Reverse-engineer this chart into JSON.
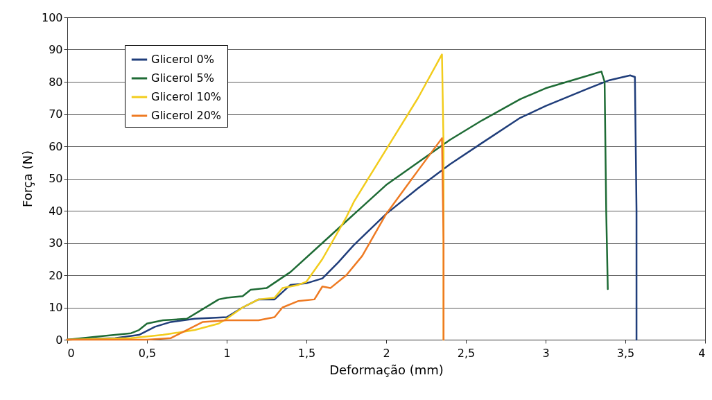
{
  "chart_data": {
    "type": "line",
    "xlabel": "Deformação (mm)",
    "ylabel": "Força (N)",
    "xlim": [
      0,
      4
    ],
    "ylim": [
      0,
      100
    ],
    "xticks": [
      0,
      {
        "value": 0.5,
        "label": "0,5"
      },
      1,
      {
        "value": 1.5,
        "label": "1,5"
      },
      2,
      {
        "value": 2.5,
        "label": "2,5"
      },
      3,
      {
        "value": 3.5,
        "label": "3,5"
      },
      4
    ],
    "yticks": [
      0,
      10,
      20,
      30,
      40,
      50,
      60,
      70,
      80,
      90,
      100
    ],
    "grid": "y",
    "legend": "top left",
    "marker": "none",
    "line_style": "solid",
    "series": [
      {
        "name": "Glicerol 0%",
        "color": "#1f3d7a",
        "x": [
          0,
          0.3,
          0.45,
          0.55,
          0.65,
          0.8,
          1,
          1.1,
          1.2,
          1.3,
          1.4,
          1.5,
          1.6,
          1.7,
          1.8,
          2,
          2.2,
          2.4,
          2.6,
          2.84,
          3,
          3.27,
          3.4,
          3.53,
          3.56,
          3.57,
          3.57
        ],
        "values": [
          0,
          0.5,
          1.5,
          4,
          5.5,
          6.5,
          7,
          10,
          12.5,
          12.5,
          17,
          17.5,
          19,
          24,
          29.5,
          39,
          47,
          54.4,
          61,
          68.8,
          72.5,
          78,
          80.5,
          82,
          81.5,
          40,
          0
        ]
      },
      {
        "name": "Glicerol 5%",
        "color": "#1e6b35",
        "x": [
          0,
          0.2,
          0.4,
          0.45,
          0.5,
          0.6,
          0.75,
          0.85,
          0.95,
          1,
          1.1,
          1.15,
          1.25,
          1.4,
          1.6,
          1.8,
          2,
          2.2,
          2.4,
          2.6,
          2.84,
          3,
          3.27,
          3.35,
          3.37,
          3.38,
          3.39
        ],
        "values": [
          0,
          1,
          2,
          3,
          5,
          6,
          6.5,
          9.5,
          12.5,
          13,
          13.5,
          15.5,
          16,
          21,
          30,
          39,
          48,
          55,
          62,
          68,
          74.6,
          78,
          82,
          83.2,
          80,
          40,
          15.7
        ]
      },
      {
        "name": "Glicerol 10%",
        "color": "#f2cc1c",
        "x": [
          0,
          0.4,
          0.6,
          0.8,
          0.95,
          1,
          1.1,
          1.2,
          1.3,
          1.35,
          1.45,
          1.5,
          1.6,
          1.75,
          1.8,
          2,
          2.2,
          2.35,
          2.36,
          2.36
        ],
        "values": [
          0,
          0.5,
          1.5,
          3,
          5,
          6.5,
          10,
          12.5,
          13,
          16,
          17,
          18,
          25,
          38,
          43,
          59,
          75,
          88.5,
          60,
          0
        ]
      },
      {
        "name": "Glicerol 20%",
        "color": "#ee7a22",
        "x": [
          0,
          0.5,
          0.65,
          0.75,
          0.85,
          1,
          1.2,
          1.3,
          1.35,
          1.45,
          1.55,
          1.6,
          1.65,
          1.75,
          1.85,
          2,
          2.2,
          2.35,
          2.36,
          2.36
        ],
        "values": [
          0,
          0,
          0.5,
          3,
          5.5,
          6,
          6,
          7,
          10,
          12,
          12.5,
          16.5,
          16,
          20,
          26,
          39,
          52.5,
          62.5,
          30,
          0
        ]
      }
    ]
  }
}
